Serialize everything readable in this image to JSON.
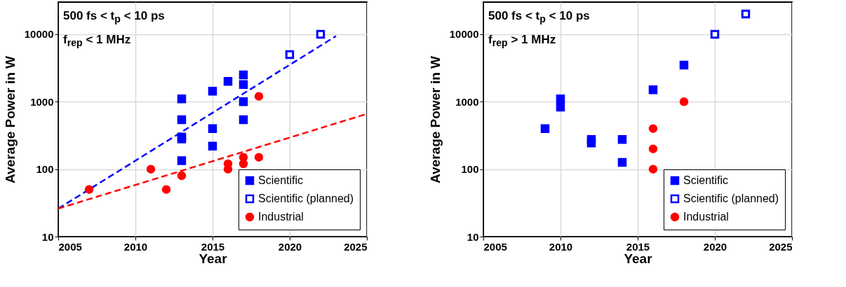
{
  "chart_data": [
    {
      "type": "scatter",
      "xlabel": "Year",
      "ylabel": "Average Power in W",
      "annotations": [
        "500 fs < t$_{p}$ < 10 ps",
        "f$_{rep}$ < 1 MHz"
      ],
      "xlim": [
        2005,
        2025
      ],
      "xticks": [
        2005,
        2010,
        2015,
        2020,
        2025
      ],
      "ylim": [
        10,
        30000
      ],
      "yticks": [
        10,
        100,
        1000,
        10000
      ],
      "log": true,
      "grid": true,
      "legend": "bottom right",
      "series": [
        {
          "name": "Scientific",
          "color": "#0000ff",
          "marker": "square",
          "x": [
            2013,
            2013,
            2013,
            2013,
            2013,
            2015,
            2015,
            2015,
            2016,
            2017,
            2017,
            2017,
            2017
          ],
          "values": [
            1100,
            540,
            300,
            280,
            134,
            1430,
            400,
            220,
            2000,
            2500,
            1800,
            1000,
            540
          ]
        },
        {
          "name": "Scientific (planned)",
          "color": "#0000ff",
          "marker": "square",
          "x": [
            2020,
            2022
          ],
          "values": [
            5000,
            10000
          ]
        },
        {
          "name": "Industrial",
          "color": "#ff0000",
          "marker": "circle",
          "x": [
            2007,
            2011,
            2012,
            2013,
            2016,
            2016,
            2017,
            2017,
            2018,
            2018
          ],
          "values": [
            50,
            100,
            50,
            80,
            120,
            100,
            150,
            120,
            150,
            1200
          ]
        },
        {
          "type": "line",
          "color": "#0000ff",
          "line_style": "dashed",
          "x": [
            2005,
            2023
          ],
          "values": [
            26,
            9400
          ]
        },
        {
          "type": "line",
          "color": "#ff0000",
          "line_style": "dashed",
          "x": [
            2005,
            2025
          ],
          "values": [
            26,
            660
          ]
        }
      ]
    },
    {
      "type": "scatter",
      "xlabel": "Year",
      "ylabel": "Average Power in W",
      "annotations": [
        "500 fs < t$_{p}$ < 10 ps",
        "f$_{rep}$ > 1 MHz"
      ],
      "xlim": [
        2005,
        2025
      ],
      "xticks": [
        2005,
        2010,
        2015,
        2020,
        2025
      ],
      "ylim": [
        10,
        30000
      ],
      "yticks": [
        10,
        100,
        1000,
        10000
      ],
      "log": true,
      "grid": true,
      "legend": "bottom right",
      "series": [
        {
          "name": "Scientific",
          "color": "#0000ff",
          "marker": "square",
          "x": [
            2009,
            2010,
            2010,
            2012,
            2012,
            2014,
            2014,
            2016,
            2018
          ],
          "values": [
            400,
            1100,
            830,
            275,
            245,
            275,
            126,
            1500,
            3500
          ]
        },
        {
          "name": "Scientific (planned)",
          "color": "#0000ff",
          "marker": "square",
          "x": [
            2020,
            2022
          ],
          "values": [
            10000,
            20000
          ]
        },
        {
          "name": "Industrial",
          "color": "#ff0000",
          "marker": "circle",
          "x": [
            2016,
            2016,
            2016,
            2018
          ],
          "values": [
            400,
            200,
            100,
            1000
          ]
        }
      ]
    }
  ]
}
